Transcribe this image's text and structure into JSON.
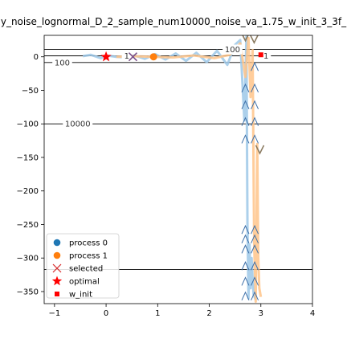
{
  "chart_data": {
    "type": "line",
    "title": "y_noise_lognormal_D_2_sample_num10000_noise_va_1.75_w_init_3_3f_",
    "xlim": [
      -1.2,
      4
    ],
    "ylim": [
      -368,
      32
    ],
    "xticks": [
      -1,
      0,
      1,
      2,
      3,
      4
    ],
    "yticks": [
      0,
      -50,
      -100,
      -150,
      -200,
      -250,
      -300,
      -350
    ],
    "grid": false,
    "legend_position": "lower-left",
    "legend": [
      {
        "label": "process 0",
        "marker": "circle",
        "color": "#1f77b4"
      },
      {
        "label": "process 1",
        "marker": "circle",
        "color": "#ff7f0e"
      },
      {
        "label": "selected",
        "marker": "x",
        "color": "#d62728"
      },
      {
        "label": "optimal",
        "marker": "star",
        "color": "#ff0000"
      },
      {
        "label": "w_init",
        "marker": "square",
        "color": "#ff0000"
      }
    ],
    "contour_lines": [
      {
        "y": 11,
        "label": "100",
        "label_x": 2.45
      },
      {
        "y": 1.5,
        "label": "1",
        "label_x": 0.4
      },
      {
        "y": 1.5,
        "label": "1",
        "label_x": 3.1
      },
      {
        "y": -8.5,
        "label": "100",
        "label_x": -0.85
      },
      {
        "y": -100,
        "label": "10000",
        "label_x": -0.55
      },
      {
        "y": -317,
        "label": "",
        "label_x": 0
      }
    ],
    "series": [
      {
        "name": "process 0",
        "color": "#9ec8e8",
        "x": [
          -0.45,
          -0.3,
          -0.1,
          0.0,
          0.2,
          0.4,
          0.55,
          0.75,
          0.95,
          1.15,
          1.35,
          1.55,
          1.75,
          1.95,
          2.15,
          2.35,
          2.5,
          2.6,
          2.68,
          2.72,
          2.74,
          2.76,
          2.78,
          2.8,
          2.82,
          2.84,
          2.86,
          2.9
        ],
        "y": [
          1,
          3,
          -2,
          2,
          0,
          -1,
          2,
          -3,
          4,
          -4,
          5,
          -6,
          6,
          -8,
          9,
          -12,
          18,
          25,
          -95,
          30,
          -250,
          -360,
          -280,
          -345,
          -300,
          -330,
          -355,
          -362
        ]
      },
      {
        "name": "process 1",
        "color": "#ffc48a",
        "x": [
          0.2,
          0.5,
          0.9,
          1.3,
          1.7,
          2.1,
          2.4,
          2.6,
          2.7,
          2.76,
          2.8,
          2.84,
          2.87,
          2.9,
          2.93,
          2.95,
          2.97,
          3.0
        ],
        "y": [
          0,
          1,
          0,
          -1,
          2,
          -2,
          3,
          20,
          -30,
          28,
          -60,
          10,
          -280,
          -365,
          -130,
          -300,
          -345,
          -358
        ]
      }
    ],
    "scatter_process1": {
      "x": [
        0.92
      ],
      "y": [
        0
      ]
    },
    "selected_markers": [
      {
        "x": 0.52,
        "y": 0,
        "style": "x"
      },
      {
        "x": 2.7,
        "y": 30,
        "style": "v"
      },
      {
        "x": 2.87,
        "y": 27,
        "style": "v"
      },
      {
        "x": 2.7,
        "y": -47,
        "style": "^"
      },
      {
        "x": 2.7,
        "y": -72,
        "style": "^"
      },
      {
        "x": 2.7,
        "y": -97,
        "style": "^"
      },
      {
        "x": 2.7,
        "y": -123,
        "style": "^"
      },
      {
        "x": 2.7,
        "y": -258,
        "style": "^"
      },
      {
        "x": 2.7,
        "y": -272,
        "style": "^"
      },
      {
        "x": 2.7,
        "y": -287,
        "style": "^"
      },
      {
        "x": 2.7,
        "y": -312,
        "style": "^"
      },
      {
        "x": 2.7,
        "y": -335,
        "style": "^"
      },
      {
        "x": 2.7,
        "y": -357,
        "style": "^"
      },
      {
        "x": 2.88,
        "y": -15,
        "style": "^"
      },
      {
        "x": 2.88,
        "y": -47,
        "style": "^"
      },
      {
        "x": 2.88,
        "y": -72,
        "style": "^"
      },
      {
        "x": 2.88,
        "y": -97,
        "style": "^"
      },
      {
        "x": 2.88,
        "y": -123,
        "style": "^"
      },
      {
        "x": 2.88,
        "y": -258,
        "style": "^"
      },
      {
        "x": 2.88,
        "y": -272,
        "style": "^"
      },
      {
        "x": 2.88,
        "y": -287,
        "style": "^"
      },
      {
        "x": 2.88,
        "y": -312,
        "style": "^"
      },
      {
        "x": 2.88,
        "y": -335,
        "style": "^"
      },
      {
        "x": 2.88,
        "y": -357,
        "style": "^"
      },
      {
        "x": 2.98,
        "y": -138,
        "style": "v"
      }
    ],
    "optimal": {
      "x": 0,
      "y": 0
    },
    "w_init": {
      "x": 3,
      "y": 3
    }
  }
}
